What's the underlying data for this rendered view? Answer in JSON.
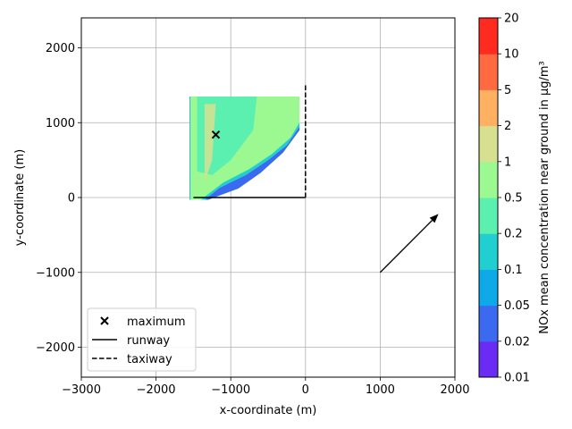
{
  "chart_data": {
    "type": "heatmap",
    "xlabel": "x-coordinate (m)",
    "ylabel": "y-coordinate (m)",
    "xlim": [
      -3000,
      2000
    ],
    "ylim": [
      -2400,
      2400
    ],
    "x_ticks": [
      -3000,
      -2000,
      -1000,
      0,
      1000,
      2000
    ],
    "x_tick_labels": [
      "−3000",
      "−2000",
      "−1000",
      "0",
      "1000",
      "2000"
    ],
    "y_ticks": [
      -2000,
      -1000,
      0,
      1000,
      2000
    ],
    "y_tick_labels": [
      "−2000",
      "−1000",
      "0",
      "1000",
      "2000"
    ],
    "grid": true,
    "colorbar": {
      "label": "NOx mean concentration near ground in µg/m³",
      "levels": [
        "0.01",
        "0.02",
        "0.05",
        "0.1",
        "0.2",
        "0.5",
        "1",
        "2",
        "5",
        "10",
        "20"
      ],
      "colors": [
        "#6a2cf5",
        "#3b6af0",
        "#0fa8e8",
        "#22cfd0",
        "#5cf0b0",
        "#9cf890",
        "#d6e090",
        "#ffb060",
        "#ff6a40",
        "#ff2a20"
      ]
    },
    "maximum": {
      "x": -1200,
      "y": 840
    },
    "runway": {
      "x": [
        -1500,
        0
      ],
      "y": [
        0,
        0
      ]
    },
    "taxiway": {
      "x": [
        0,
        0
      ],
      "y": [
        0,
        1500
      ]
    },
    "wind_arrow": {
      "x": [
        1000,
        1780
      ],
      "y": [
        -1000,
        -220
      ]
    },
    "plume_region": [
      [
        -1550,
        1350
      ],
      [
        -80,
        1350
      ],
      [
        -80,
        900
      ],
      [
        -300,
        600
      ],
      [
        -600,
        330
      ],
      [
        -900,
        120
      ],
      [
        -1300,
        -30
      ],
      [
        -1550,
        -30
      ]
    ],
    "legend": {
      "placement": "lower-left",
      "entries": [
        {
          "label": "maximum",
          "style": "marker-x"
        },
        {
          "label": "runway",
          "style": "solid"
        },
        {
          "label": "taxiway",
          "style": "dashed"
        }
      ]
    }
  }
}
